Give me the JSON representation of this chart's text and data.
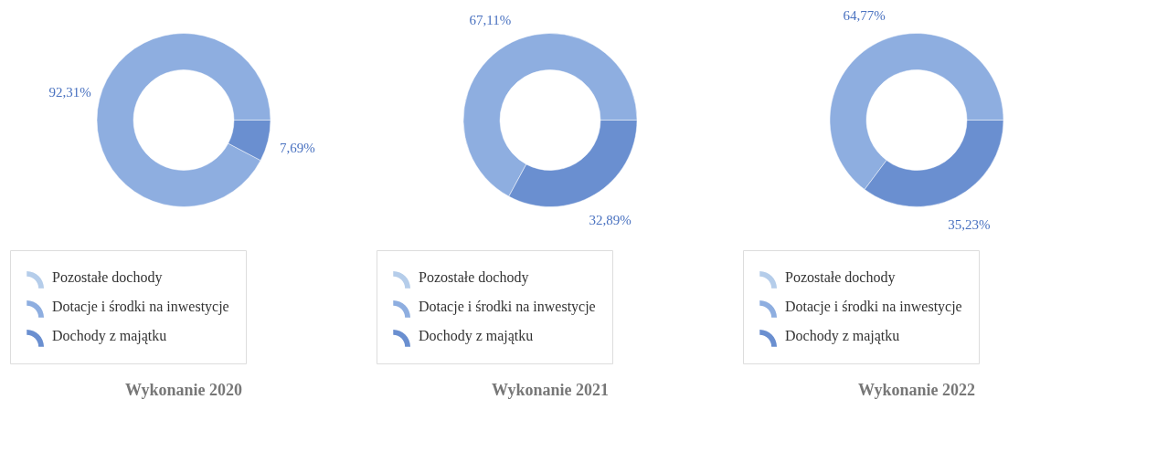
{
  "chart_data": [
    {
      "type": "donut",
      "title": "Wykonanie 2020",
      "categories": [
        "Pozostałe dochody",
        "Dotacje i środki na inwestycje",
        "Dochody z majątku"
      ],
      "values": [
        0,
        92.31,
        7.69
      ],
      "colors": [
        "#b5cdea",
        "#8eaee0",
        "#6a8fd0"
      ],
      "value_labels": [
        null,
        "92,31%",
        "7,69%"
      ],
      "legend": "bottom"
    },
    {
      "type": "donut",
      "title": "Wykonanie 2021",
      "categories": [
        "Pozostałe dochody",
        "Dotacje i środki na inwestycje",
        "Dochody z majątku"
      ],
      "values": [
        0,
        67.11,
        32.89
      ],
      "colors": [
        "#b5cdea",
        "#8eaee0",
        "#6a8fd0"
      ],
      "value_labels": [
        null,
        "67,11%",
        "32,89%"
      ],
      "legend": "bottom"
    },
    {
      "type": "donut",
      "title": "Wykonanie 2022",
      "categories": [
        "Pozostałe dochody",
        "Dotacje i środki na inwestycje",
        "Dochody z majątku"
      ],
      "values": [
        0,
        64.77,
        35.23
      ],
      "colors": [
        "#b5cdea",
        "#8eaee0",
        "#6a8fd0"
      ],
      "value_labels": [
        null,
        "64,77%",
        "35,23%"
      ],
      "legend": "bottom"
    }
  ]
}
